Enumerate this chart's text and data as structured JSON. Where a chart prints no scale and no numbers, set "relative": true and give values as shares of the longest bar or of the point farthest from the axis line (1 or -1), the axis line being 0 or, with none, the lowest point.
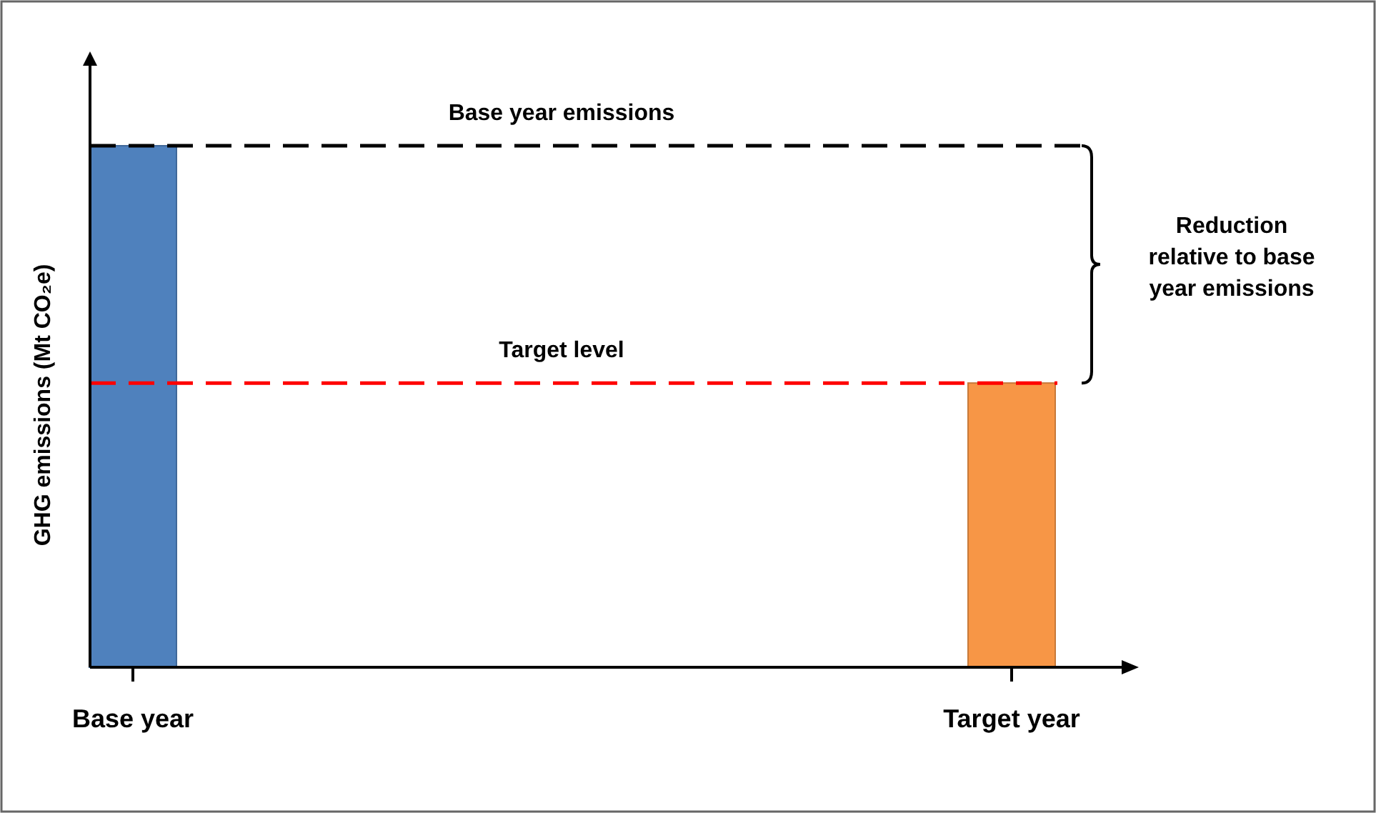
{
  "chart_data": {
    "type": "bar",
    "relative": true,
    "ylabel": "GHG  emissions (Mt CO₂e)",
    "categories": [
      "Base year",
      "Target year"
    ],
    "values": [
      1,
      0.545
    ],
    "colors": [
      "#4f81bd",
      "#f79646"
    ],
    "ref_lines": [
      {
        "axis": "y",
        "value": 1,
        "label": "Base year emissions",
        "color": "#000000",
        "line_style": "dashed"
      },
      {
        "axis": "y",
        "value": 0.545,
        "label": "Target level",
        "color": "#ff0000",
        "line_style": "dashed"
      }
    ],
    "annotations": [
      "Reduction relative to base year emissions"
    ],
    "grid": false
  }
}
